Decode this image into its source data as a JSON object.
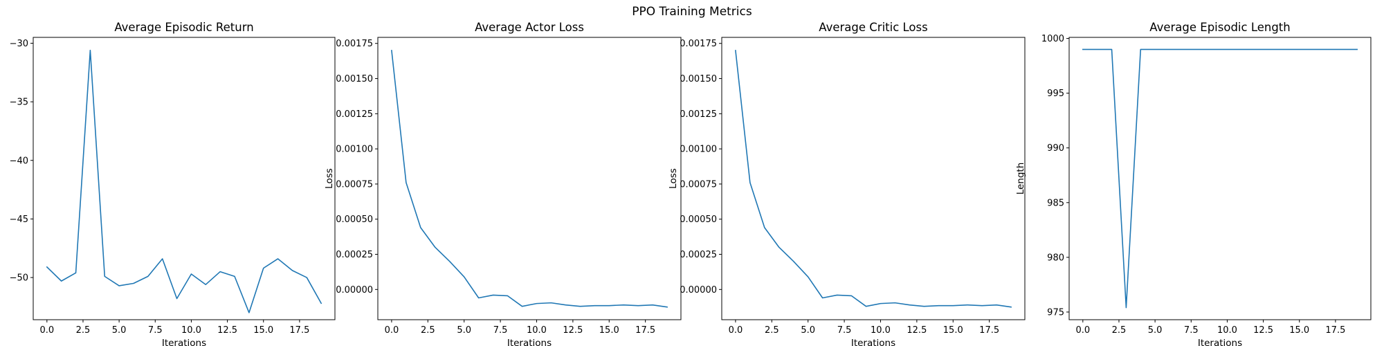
{
  "figure_title": "PPO Training Metrics",
  "colors": {
    "series": "#1f77b4",
    "axis": "#000000"
  },
  "chart_data": [
    {
      "type": "line",
      "title": "Average Episodic Return",
      "xlabel": "Iterations",
      "ylabel": "",
      "grid": false,
      "x": [
        0,
        1,
        2,
        3,
        4,
        5,
        6,
        7,
        8,
        9,
        10,
        11,
        12,
        13,
        14,
        15,
        16,
        17,
        18,
        19
      ],
      "series": [
        {
          "values": [
            -49.1,
            -50.3,
            -49.6,
            -30.6,
            -49.9,
            -50.7,
            -50.5,
            -49.9,
            -48.4,
            -51.8,
            -49.7,
            -50.6,
            -49.5,
            -49.9,
            -53.0,
            -49.2,
            -48.4,
            -49.4,
            -50.0,
            -52.2
          ]
        }
      ],
      "xlim": [
        -0.95,
        19.95
      ],
      "ylim": [
        -53.6,
        -29.5
      ],
      "xticks": [
        0.0,
        2.5,
        5.0,
        7.5,
        10.0,
        12.5,
        15.0,
        17.5
      ],
      "xtick_labels": [
        "0.0",
        "2.5",
        "5.0",
        "7.5",
        "10.0",
        "12.5",
        "15.0",
        "17.5"
      ],
      "yticks": [
        -50,
        -45,
        -40,
        -35,
        -30
      ],
      "ytick_labels": [
        "−50",
        "−45",
        "−40",
        "−35",
        "−30"
      ]
    },
    {
      "type": "line",
      "title": "Average Actor Loss",
      "xlabel": "Iterations",
      "ylabel": "Loss",
      "grid": false,
      "x": [
        0,
        1,
        2,
        3,
        4,
        5,
        6,
        7,
        8,
        9,
        10,
        11,
        12,
        13,
        14,
        15,
        16,
        17,
        18,
        19
      ],
      "series": [
        {
          "values": [
            0.0017,
            0.00076,
            0.00044,
            0.0003,
            0.0002,
            9e-05,
            -6e-05,
            -4e-05,
            -4.5e-05,
            -0.00012,
            -0.0001,
            -9.5e-05,
            -0.00011,
            -0.00012,
            -0.000115,
            -0.000115,
            -0.00011,
            -0.000115,
            -0.00011,
            -0.000125
          ]
        }
      ],
      "xlim": [
        -0.95,
        19.95
      ],
      "ylim": [
        -0.000215,
        0.001793
      ],
      "xticks": [
        0.0,
        2.5,
        5.0,
        7.5,
        10.0,
        12.5,
        15.0,
        17.5
      ],
      "xtick_labels": [
        "0.0",
        "2.5",
        "5.0",
        "7.5",
        "10.0",
        "12.5",
        "15.0",
        "17.5"
      ],
      "yticks": [
        0,
        0.00025,
        0.0005,
        0.00075,
        0.001,
        0.00125,
        0.0015,
        0.00175
      ],
      "ytick_labels": [
        "0.00000",
        "0.00025",
        "0.00050",
        "0.00075",
        "0.00100",
        "0.00125",
        "0.00150",
        "0.00175"
      ]
    },
    {
      "type": "line",
      "title": "Average Critic Loss",
      "xlabel": "Iterations",
      "ylabel": "Loss",
      "grid": false,
      "x": [
        0,
        1,
        2,
        3,
        4,
        5,
        6,
        7,
        8,
        9,
        10,
        11,
        12,
        13,
        14,
        15,
        16,
        17,
        18,
        19
      ],
      "series": [
        {
          "values": [
            0.0017,
            0.00076,
            0.00044,
            0.0003,
            0.0002,
            9e-05,
            -6e-05,
            -4e-05,
            -4.5e-05,
            -0.00012,
            -0.0001,
            -9.5e-05,
            -0.00011,
            -0.00012,
            -0.000115,
            -0.000115,
            -0.00011,
            -0.000115,
            -0.00011,
            -0.000125
          ]
        }
      ],
      "xlim": [
        -0.95,
        19.95
      ],
      "ylim": [
        -0.000215,
        0.001793
      ],
      "xticks": [
        0.0,
        2.5,
        5.0,
        7.5,
        10.0,
        12.5,
        15.0,
        17.5
      ],
      "xtick_labels": [
        "0.0",
        "2.5",
        "5.0",
        "7.5",
        "10.0",
        "12.5",
        "15.0",
        "17.5"
      ],
      "yticks": [
        0,
        0.00025,
        0.0005,
        0.00075,
        0.001,
        0.00125,
        0.0015,
        0.00175
      ],
      "ytick_labels": [
        "0.00000",
        "0.00025",
        "0.00050",
        "0.00075",
        "0.00100",
        "0.00125",
        "0.00150",
        "0.00175"
      ]
    },
    {
      "type": "line",
      "title": "Average Episodic Length",
      "xlabel": "Iterations",
      "ylabel": "Length",
      "grid": false,
      "x": [
        0,
        1,
        2,
        3,
        4,
        5,
        6,
        7,
        8,
        9,
        10,
        11,
        12,
        13,
        14,
        15,
        16,
        17,
        18,
        19
      ],
      "series": [
        {
          "values": [
            999,
            999,
            999,
            975.4,
            999,
            999,
            999,
            999,
            999,
            999,
            999,
            999,
            999,
            999,
            999,
            999,
            999,
            999,
            999,
            999
          ]
        }
      ],
      "xlim": [
        -0.95,
        19.95
      ],
      "ylim": [
        974.3,
        1000.1
      ],
      "xticks": [
        0.0,
        2.5,
        5.0,
        7.5,
        10.0,
        12.5,
        15.0,
        17.5
      ],
      "xtick_labels": [
        "0.0",
        "2.5",
        "5.0",
        "7.5",
        "10.0",
        "12.5",
        "15.0",
        "17.5"
      ],
      "yticks": [
        975,
        980,
        985,
        990,
        995,
        1000
      ],
      "ytick_labels": [
        "975",
        "980",
        "985",
        "990",
        "995",
        "1000"
      ]
    }
  ]
}
